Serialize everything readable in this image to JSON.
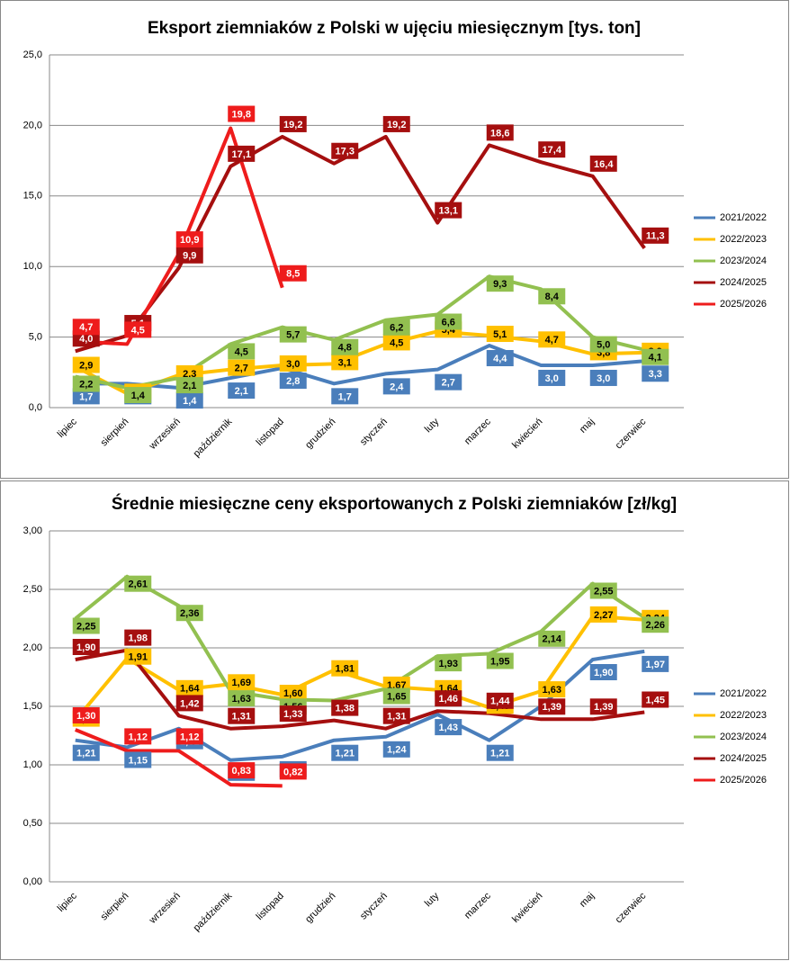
{
  "chart_data": [
    {
      "type": "line",
      "title": "Eksport ziemniaków z Polski w ujęciu miesięcznym [tys. ton]",
      "categories": [
        "lipiec",
        "sierpień",
        "wrzesień",
        "październik",
        "listopad",
        "grudzień",
        "styczeń",
        "luty",
        "marzec",
        "kwiecień",
        "maj",
        "czerwiec"
      ],
      "ylim": [
        0,
        25
      ],
      "yticks": [
        {
          "value": 0,
          "label": "0,0"
        },
        {
          "value": 5,
          "label": "5,0"
        },
        {
          "value": 10,
          "label": "10,0"
        },
        {
          "value": 15,
          "label": "15,0"
        },
        {
          "value": 20,
          "label": "20,0"
        },
        {
          "value": 25,
          "label": "25,0"
        }
      ],
      "grid": true,
      "legend": "right",
      "series": [
        {
          "name": "2021/2022",
          "color": "#4a7ebb",
          "values": [
            1.7,
            1.7,
            1.4,
            2.1,
            2.8,
            1.7,
            2.4,
            2.7,
            4.4,
            3.0,
            3.0,
            3.3
          ],
          "value_labels": [
            "1,7",
            "1,7",
            "1,4",
            "2,1",
            "2,8",
            "1,7",
            "2,4",
            "2,7",
            "4,4",
            "3,0",
            "3,0",
            "3,3"
          ]
        },
        {
          "name": "2022/2023",
          "color": "#ffc000",
          "values": [
            2.9,
            1.0,
            2.3,
            2.7,
            3.0,
            3.1,
            4.5,
            5.4,
            5.1,
            4.7,
            3.8,
            3.9
          ],
          "value_labels": [
            "2,9",
            "1,0",
            "2,3",
            "2,7",
            "3,0",
            "3,1",
            "4,5",
            "5,4",
            "5,1",
            "4,7",
            "3,8",
            "3,9"
          ]
        },
        {
          "name": "2023/2024",
          "color": "#92c050",
          "values": [
            2.2,
            1.4,
            2.1,
            4.5,
            5.7,
            4.8,
            6.2,
            6.6,
            9.3,
            8.4,
            5.0,
            4.1
          ],
          "value_labels": [
            "2,2",
            "1,4",
            "2,1",
            "4,5",
            "5,7",
            "4,8",
            "6,2",
            "6,6",
            "9,3",
            "8,4",
            "5,0",
            "4,1"
          ]
        },
        {
          "name": "2024/2025",
          "color": "#a50f0f",
          "values": [
            4.0,
            5.1,
            9.9,
            17.1,
            19.2,
            17.3,
            19.2,
            13.1,
            18.6,
            17.4,
            16.4,
            11.3
          ],
          "value_labels": [
            "4,0",
            "5,1",
            "9,9",
            "17,1",
            "19,2",
            "17,3",
            "19,2",
            "13,1",
            "18,6",
            "17,4",
            "16,4",
            "11,3"
          ]
        },
        {
          "name": "2025/2026",
          "color": "#ee1c1c",
          "values": [
            4.7,
            4.5,
            10.9,
            19.8,
            8.5,
            null,
            null,
            null,
            null,
            null,
            null,
            null
          ],
          "value_labels": [
            "4,7",
            "4,5",
            "10,9",
            "19,8",
            "8,5",
            null,
            null,
            null,
            null,
            null,
            null,
            null
          ]
        }
      ]
    },
    {
      "type": "line",
      "title": "Średnie miesięczne ceny eksportowanych z Polski ziemniaków [zł/kg]",
      "categories": [
        "lipiec",
        "sierpień",
        "wrzesień",
        "październik",
        "listopad",
        "grudzień",
        "styczeń",
        "luty",
        "marzec",
        "kwiecień",
        "maj",
        "czerwiec"
      ],
      "ylim": [
        0,
        3
      ],
      "yticks": [
        {
          "value": 0,
          "label": "0,00"
        },
        {
          "value": 0.5,
          "label": "0,50"
        },
        {
          "value": 1,
          "label": "1,00"
        },
        {
          "value": 1.5,
          "label": "1,50"
        },
        {
          "value": 2,
          "label": "2,00"
        },
        {
          "value": 2.5,
          "label": "2,50"
        },
        {
          "value": 3,
          "label": "3,00"
        }
      ],
      "grid": true,
      "legend": "right",
      "series": [
        {
          "name": "2021/2022",
          "color": "#4a7ebb",
          "values": [
            1.21,
            1.15,
            1.31,
            1.04,
            1.07,
            1.21,
            1.24,
            1.43,
            1.21,
            1.5,
            1.9,
            1.97
          ],
          "value_labels": [
            "1,21",
            "1,15",
            "1,31",
            "1,04",
            "1,07",
            "1,21",
            "1,24",
            "1,43",
            "1,21",
            null,
            "1,90",
            "1,97"
          ]
        },
        {
          "name": "2022/2023",
          "color": "#ffc000",
          "values": [
            1.38,
            1.91,
            1.64,
            1.69,
            1.6,
            1.81,
            1.67,
            1.64,
            1.49,
            1.63,
            2.27,
            2.24
          ],
          "value_labels": [
            "1,38",
            "1,91",
            "1,64",
            "1,69",
            "1,60",
            "1,81",
            "1,67",
            "1,64",
            "1,49",
            "1,63",
            "2,27",
            "2,24"
          ]
        },
        {
          "name": "2023/2024",
          "color": "#92c050",
          "values": [
            2.25,
            2.61,
            2.36,
            1.63,
            1.56,
            1.55,
            1.65,
            1.93,
            1.95,
            2.14,
            2.55,
            2.26
          ],
          "value_labels": [
            "2,25",
            "2,61",
            "2,36",
            "1,63",
            "1,56",
            "1,55",
            "1,65",
            "1,93",
            "1,95",
            "2,14",
            "2,55",
            "2,26"
          ]
        },
        {
          "name": "2024/2025",
          "color": "#a50f0f",
          "values": [
            1.9,
            1.98,
            1.42,
            1.31,
            1.33,
            1.38,
            1.31,
            1.46,
            1.44,
            1.39,
            1.39,
            1.45
          ],
          "value_labels": [
            "1,90",
            "1,98",
            "1,42",
            "1,31",
            "1,33",
            "1,38",
            "1,31",
            "1,46",
            "1,44",
            "1,39",
            "1,39",
            "1,45"
          ]
        },
        {
          "name": "2025/2026",
          "color": "#ee1c1c",
          "values": [
            1.3,
            1.12,
            1.12,
            0.83,
            0.82,
            null,
            null,
            null,
            null,
            null,
            null,
            null
          ],
          "value_labels": [
            "1,30",
            "1,12",
            "1,12",
            "0,83",
            "0,82",
            null,
            null,
            null,
            null,
            null,
            null,
            null
          ]
        }
      ]
    }
  ]
}
